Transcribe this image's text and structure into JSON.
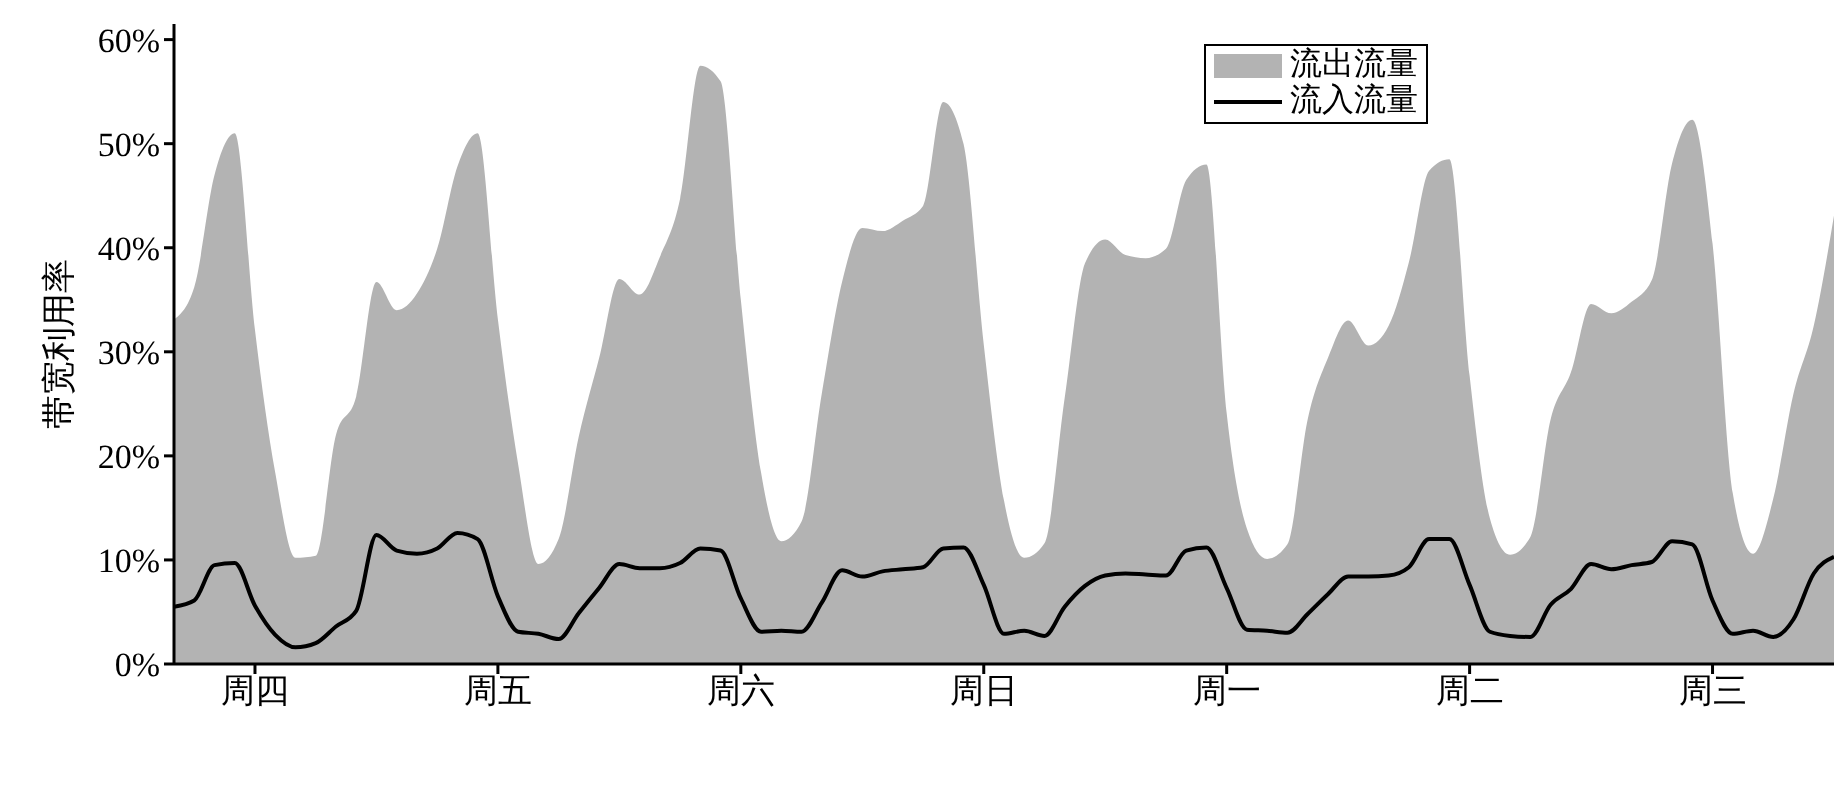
{
  "chart_data": {
    "type": "area",
    "ylabel": "带宽利用率",
    "ylim": [
      0,
      61.5
    ],
    "categories": [
      null,
      null,
      null,
      null,
      "周四",
      null,
      null,
      null,
      null,
      null,
      null,
      null,
      null,
      null,
      null,
      null,
      "周五",
      null,
      null,
      null,
      null,
      null,
      null,
      null,
      null,
      null,
      null,
      null,
      "周六",
      null,
      null,
      null,
      null,
      null,
      null,
      null,
      null,
      null,
      null,
      null,
      "周日",
      null,
      null,
      null,
      null,
      null,
      null,
      null,
      null,
      null,
      null,
      null,
      "周一",
      null,
      null,
      null,
      null,
      null,
      null,
      null,
      null,
      null,
      null,
      null,
      "周二",
      null,
      null,
      null,
      null,
      null,
      null,
      null,
      null,
      null,
      null,
      null,
      "周三",
      null,
      null,
      null,
      null,
      null,
      null
    ],
    "yticks": [
      {
        "value": 0,
        "label": "0%"
      },
      {
        "value": 10,
        "label": "10%"
      },
      {
        "value": 20,
        "label": "20%"
      },
      {
        "value": 30,
        "label": "30%"
      },
      {
        "value": 40,
        "label": "40%"
      },
      {
        "value": 50,
        "label": "50%"
      },
      {
        "value": 60,
        "label": "60%"
      }
    ],
    "grid": false,
    "legend": "top right",
    "series": [
      {
        "name": "流出流量",
        "color": "#b3b3b3",
        "values": [
          33.1,
          36.2,
          47,
          51,
          32.1,
          18.4,
          10.2,
          10.4,
          22,
          25.7,
          36.7,
          34,
          35.6,
          39.9,
          47.8,
          51,
          33.1,
          19.2,
          9.6,
          12,
          21.9,
          29.4,
          37,
          35.5,
          39.1,
          44.7,
          57.5,
          56,
          35,
          18.4,
          11.8,
          13.7,
          26,
          36.7,
          41.9,
          41.6,
          42.6,
          44,
          54,
          50,
          30.7,
          15.7,
          10.2,
          11.6,
          25.6,
          38.5,
          40.8,
          39.3,
          39,
          39.9,
          46.5,
          48,
          24.1,
          13,
          10.1,
          11.5,
          23.5,
          29.4,
          33,
          30.6,
          32.5,
          38.6,
          47.4,
          48.5,
          27.7,
          14,
          10.5,
          12.2,
          23.5,
          28,
          34.6,
          33.7,
          34.8,
          36.9,
          48.1,
          52.3,
          40.4,
          16.4,
          10.6,
          15.9,
          26,
          32.5,
          43.1
        ]
      },
      {
        "name": "流入流量",
        "type": "line",
        "color": "#000000",
        "values": [
          5.5,
          6.1,
          9.5,
          9.7,
          5.6,
          2.8,
          1.6,
          2,
          3.6,
          5.1,
          12.4,
          10.9,
          10.6,
          11.1,
          12.6,
          12,
          6.5,
          3.1,
          2.9,
          2.4,
          4.9,
          7.3,
          9.6,
          9.2,
          9.2,
          9.7,
          11.1,
          10.9,
          6.3,
          3.1,
          3.2,
          3.1,
          5.9,
          9,
          8.4,
          8.9,
          9.1,
          9.3,
          11.1,
          11.2,
          7.6,
          2.9,
          3.2,
          2.7,
          5.5,
          7.5,
          8.5,
          8.7,
          8.6,
          8.5,
          10.9,
          11.2,
          7.3,
          3.3,
          3.2,
          3,
          4.8,
          6.7,
          8.4,
          8.4,
          8.5,
          9.3,
          12,
          12,
          7.6,
          3.1,
          2.7,
          2.6,
          5.7,
          7.2,
          9.6,
          9.1,
          9.5,
          9.8,
          11.8,
          11.5,
          6.1,
          2.9,
          3.2,
          2.6,
          4.3,
          8.7,
          10.3
        ]
      }
    ]
  }
}
